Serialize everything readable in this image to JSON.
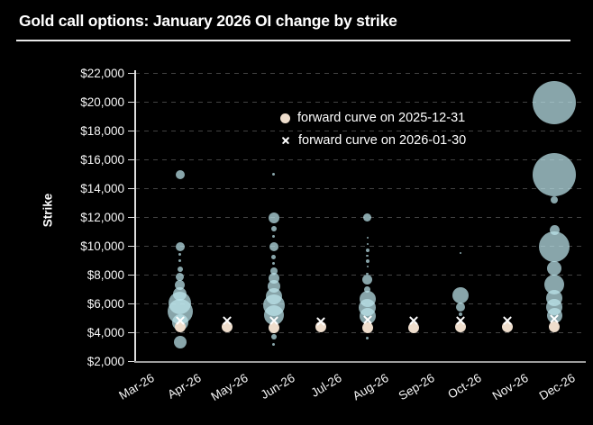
{
  "header": {
    "title": "Gold call options: January 2026 OI change by strike"
  },
  "chart_data": {
    "type": "scatter",
    "title": "Gold call options: January 2026 OI change by strike",
    "xlabel": "",
    "ylabel": "Strike",
    "ylim": [
      2000,
      22000
    ],
    "y_tick_step": 2000,
    "y_ticks": [
      "$22,000",
      "$20,000",
      "$18,000",
      "$16,000",
      "$14,000",
      "$12,000",
      "$10,000",
      "$8,000",
      "$6,000",
      "$4,000",
      "$2,000"
    ],
    "categories": [
      "Mar-26",
      "Apr-26",
      "May-26",
      "Jun-26",
      "Jul-26",
      "Aug-26",
      "Sep-26",
      "Oct-26",
      "Nov-26",
      "Dec-26"
    ],
    "grid": "dashed horizontal",
    "legend_position": "upper middle inside plot",
    "legend": [
      {
        "marker": "circle",
        "label": "forward curve on 2025-12-31"
      },
      {
        "marker": "x",
        "label": "forward curve on 2026-01-30"
      }
    ],
    "bubble_series_note": "OI change by strike; bubble size = relative OI change (radius px)",
    "bubbles": [
      {
        "month": "Apr-26",
        "strike": 15000,
        "size": 5
      },
      {
        "month": "Apr-26",
        "strike": 10000,
        "size": 5
      },
      {
        "month": "Apr-26",
        "strike": 9450,
        "size": 1.5
      },
      {
        "month": "Apr-26",
        "strike": 9000,
        "size": 1.5
      },
      {
        "month": "Apr-26",
        "strike": 8400,
        "size": 3
      },
      {
        "month": "Apr-26",
        "strike": 7850,
        "size": 4.5
      },
      {
        "month": "Apr-26",
        "strike": 7300,
        "size": 5.5
      },
      {
        "month": "Apr-26",
        "strike": 6700,
        "size": 7.5
      },
      {
        "month": "Apr-26",
        "strike": 6050,
        "size": 12.5
      },
      {
        "month": "Apr-26",
        "strike": 5450,
        "size": 14
      },
      {
        "month": "Apr-26",
        "strike": 4750,
        "size": 9
      },
      {
        "month": "Apr-26",
        "strike": 3350,
        "size": 7
      },
      {
        "month": "Jun-26",
        "strike": 15000,
        "size": 1.5
      },
      {
        "month": "Jun-26",
        "strike": 12000,
        "size": 6
      },
      {
        "month": "Jun-26",
        "strike": 11250,
        "size": 3
      },
      {
        "month": "Jun-26",
        "strike": 10700,
        "size": 1.5
      },
      {
        "month": "Jun-26",
        "strike": 10000,
        "size": 5
      },
      {
        "month": "Jun-26",
        "strike": 9250,
        "size": 2.5
      },
      {
        "month": "Jun-26",
        "strike": 8800,
        "size": 1.5
      },
      {
        "month": "Jun-26",
        "strike": 8300,
        "size": 4
      },
      {
        "month": "Jun-26",
        "strike": 7800,
        "size": 6
      },
      {
        "month": "Jun-26",
        "strike": 7250,
        "size": 7
      },
      {
        "month": "Jun-26",
        "strike": 6550,
        "size": 9
      },
      {
        "month": "Jun-26",
        "strike": 5900,
        "size": 12
      },
      {
        "month": "Jun-26",
        "strike": 5200,
        "size": 11
      },
      {
        "month": "Jun-26",
        "strike": 3700,
        "size": 3
      },
      {
        "month": "Jun-26",
        "strike": 3200,
        "size": 1.5
      },
      {
        "month": "Aug-26",
        "strike": 12000,
        "size": 4.5
      },
      {
        "month": "Aug-26",
        "strike": 10600,
        "size": 1
      },
      {
        "month": "Aug-26",
        "strike": 10150,
        "size": 1
      },
      {
        "month": "Aug-26",
        "strike": 9700,
        "size": 2
      },
      {
        "month": "Aug-26",
        "strike": 9350,
        "size": 1.2
      },
      {
        "month": "Aug-26",
        "strike": 9000,
        "size": 2
      },
      {
        "month": "Aug-26",
        "strike": 8600,
        "size": 1
      },
      {
        "month": "Aug-26",
        "strike": 8100,
        "size": 1.2
      },
      {
        "month": "Aug-26",
        "strike": 7700,
        "size": 5.5
      },
      {
        "month": "Aug-26",
        "strike": 7000,
        "size": 3.5
      },
      {
        "month": "Aug-26",
        "strike": 6350,
        "size": 9
      },
      {
        "month": "Aug-26",
        "strike": 5750,
        "size": 9.5
      },
      {
        "month": "Aug-26",
        "strike": 5150,
        "size": 9
      },
      {
        "month": "Aug-26",
        "strike": 3650,
        "size": 1.5
      },
      {
        "month": "Oct-26",
        "strike": 9550,
        "size": 1
      },
      {
        "month": "Oct-26",
        "strike": 6600,
        "size": 9
      },
      {
        "month": "Oct-26",
        "strike": 5800,
        "size": 5
      },
      {
        "month": "Oct-26",
        "strike": 5300,
        "size": 2
      },
      {
        "month": "Dec-26",
        "strike": 20000,
        "size": 24
      },
      {
        "month": "Dec-26",
        "strike": 15000,
        "size": 24
      },
      {
        "month": "Dec-26",
        "strike": 13200,
        "size": 4
      },
      {
        "month": "Dec-26",
        "strike": 11100,
        "size": 5.5
      },
      {
        "month": "Dec-26",
        "strike": 10000,
        "size": 17
      },
      {
        "month": "Dec-26",
        "strike": 8450,
        "size": 8
      },
      {
        "month": "Dec-26",
        "strike": 7350,
        "size": 11
      },
      {
        "month": "Dec-26",
        "strike": 6400,
        "size": 9
      },
      {
        "month": "Dec-26",
        "strike": 5800,
        "size": 9
      },
      {
        "month": "Dec-26",
        "strike": 5200,
        "size": 8.5
      }
    ],
    "series": [
      {
        "name": "forward curve on 2025-12-31",
        "marker": "circle",
        "points": [
          {
            "month": "Apr-26",
            "value": 4380
          },
          {
            "month": "May-26",
            "value": 4400
          },
          {
            "month": "Jun-26",
            "value": 4360
          },
          {
            "month": "Jul-26",
            "value": 4400
          },
          {
            "month": "Aug-26",
            "value": 4370
          },
          {
            "month": "Sep-26",
            "value": 4330
          },
          {
            "month": "Oct-26",
            "value": 4400
          },
          {
            "month": "Nov-26",
            "value": 4430
          },
          {
            "month": "Dec-26",
            "value": 4400
          }
        ]
      },
      {
        "name": "forward curve on 2026-01-30",
        "marker": "x",
        "points": [
          {
            "month": "Apr-26",
            "value": 4870
          },
          {
            "month": "May-26",
            "value": 4820
          },
          {
            "month": "Jun-26",
            "value": 4840
          },
          {
            "month": "Jul-26",
            "value": 4800
          },
          {
            "month": "Aug-26",
            "value": 4880
          },
          {
            "month": "Sep-26",
            "value": 4830
          },
          {
            "month": "Oct-26",
            "value": 4870
          },
          {
            "month": "Nov-26",
            "value": 4850
          },
          {
            "month": "Dec-26",
            "value": 4990
          }
        ]
      }
    ],
    "colors": {
      "background": "#000000",
      "bubble": "rgba(188,229,235,0.72)",
      "forward_dot": "#eeddcc",
      "x_marker": "#ffffff",
      "gridline": "#424242",
      "axis": "#dedede",
      "bottom_axis": "#9d9d9d",
      "text": "#ffffff"
    }
  }
}
